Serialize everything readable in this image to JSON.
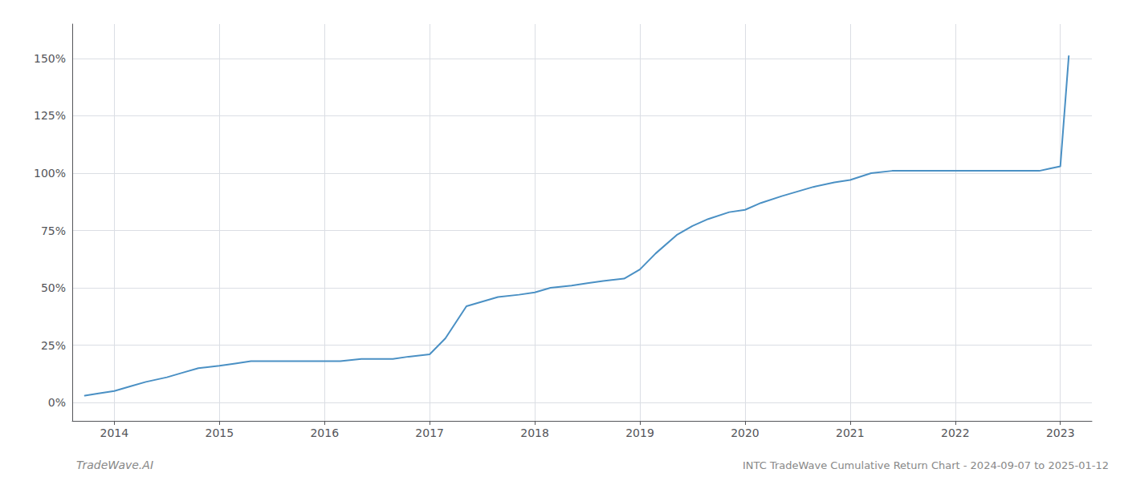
{
  "chart_data": {
    "type": "line",
    "title": "INTC TradeWave Cumulative Return Chart - 2024-09-07 to 2025-01-12",
    "annotations": [
      "TradeWave.AI"
    ],
    "color": "#4a90c4",
    "grid": true,
    "x": [
      2013.72,
      2013.85,
      2014.0,
      2014.15,
      2014.3,
      2014.5,
      2014.65,
      2014.8,
      2015.0,
      2015.15,
      2015.3,
      2015.5,
      2015.65,
      2015.8,
      2016.0,
      2016.15,
      2016.35,
      2016.5,
      2016.65,
      2016.8,
      2017.0,
      2017.15,
      2017.35,
      2017.5,
      2017.65,
      2017.85,
      2018.0,
      2018.15,
      2018.35,
      2018.5,
      2018.65,
      2018.85,
      2019.0,
      2019.15,
      2019.35,
      2019.5,
      2019.65,
      2019.85,
      2020.0,
      2020.15,
      2020.35,
      2020.5,
      2020.65,
      2020.85,
      2021.0,
      2021.2,
      2021.4,
      2021.6,
      2021.8,
      2022.0,
      2022.2,
      2022.4,
      2022.6,
      2022.8,
      2022.9,
      2023.0,
      2023.08
    ],
    "values": [
      3,
      4,
      5,
      7,
      9,
      11,
      13,
      15,
      16,
      17,
      18,
      18,
      18,
      18,
      18,
      18,
      19,
      19,
      19,
      20,
      21,
      28,
      42,
      44,
      46,
      47,
      48,
      50,
      51,
      52,
      53,
      54,
      58,
      65,
      73,
      77,
      80,
      83,
      84,
      87,
      90,
      92,
      94,
      96,
      97,
      100,
      101,
      101,
      101,
      101,
      101,
      101,
      101,
      101,
      102,
      103,
      151
    ],
    "xlim": [
      2013.6,
      2023.3
    ],
    "ylim": [
      -8,
      165
    ],
    "xticks": [
      2014,
      2015,
      2016,
      2017,
      2018,
      2019,
      2020,
      2021,
      2022,
      2023
    ],
    "yticks": [
      {
        "value": 0,
        "label": "0%"
      },
      {
        "value": 25,
        "label": "25%"
      },
      {
        "value": 50,
        "label": "50%"
      },
      {
        "value": 75,
        "label": "75%"
      },
      {
        "value": 100,
        "label": "100%"
      },
      {
        "value": 125,
        "label": "125%"
      },
      {
        "value": 150,
        "label": "150%"
      }
    ]
  }
}
